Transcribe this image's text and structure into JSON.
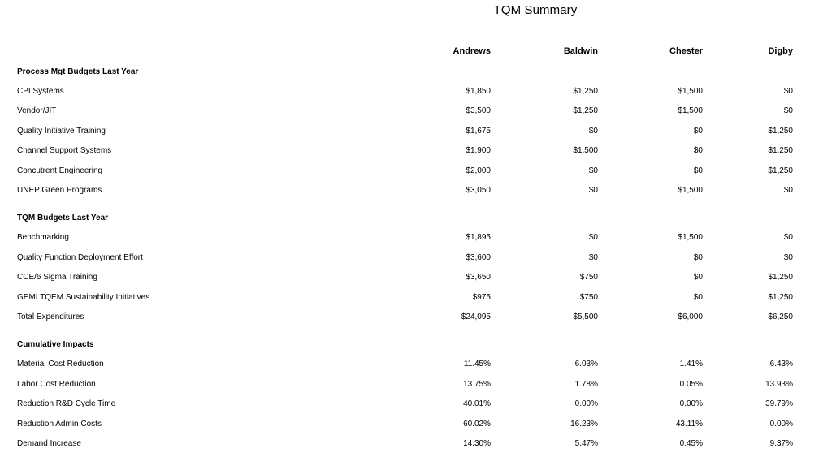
{
  "title": "TQM Summary",
  "columns": [
    "Andrews",
    "Baldwin",
    "Chester",
    "Digby"
  ],
  "sections": [
    {
      "heading": "Process Mgt Budgets Last Year",
      "rows": [
        {
          "label": "CPI Systems",
          "values": [
            "$1,850",
            "$1,250",
            "$1,500",
            "$0"
          ]
        },
        {
          "label": "Vendor/JIT",
          "values": [
            "$3,500",
            "$1,250",
            "$1,500",
            "$0"
          ]
        },
        {
          "label": "Quality Initiative Training",
          "values": [
            "$1,675",
            "$0",
            "$0",
            "$1,250"
          ]
        },
        {
          "label": "Channel Support Systems",
          "values": [
            "$1,900",
            "$1,500",
            "$0",
            "$1,250"
          ]
        },
        {
          "label": "Concutrent Engineering",
          "values": [
            "$2,000",
            "$0",
            "$0",
            "$1,250"
          ]
        },
        {
          "label": "UNEP Green Programs",
          "values": [
            "$3,050",
            "$0",
            "$1,500",
            "$0"
          ]
        }
      ]
    },
    {
      "heading": "TQM Budgets Last Year",
      "rows": [
        {
          "label": "Benchmarking",
          "values": [
            "$1,895",
            "$0",
            "$1,500",
            "$0"
          ]
        },
        {
          "label": "Quality Function Deployment Effort",
          "values": [
            "$3,600",
            "$0",
            "$0",
            "$0"
          ]
        },
        {
          "label": "CCE/6 Sigma Training",
          "values": [
            "$3,650",
            "$750",
            "$0",
            "$1,250"
          ]
        },
        {
          "label": "GEMI TQEM Sustainability Initiatives",
          "values": [
            "$975",
            "$750",
            "$0",
            "$1,250"
          ]
        },
        {
          "label": "Total Expenditures",
          "values": [
            "$24,095",
            "$5,500",
            "$6,000",
            "$6,250"
          ]
        }
      ]
    },
    {
      "heading": "Cumulative Impacts",
      "rows": [
        {
          "label": "Material Cost Reduction",
          "values": [
            "11.45%",
            "6.03%",
            "1.41%",
            "6.43%"
          ]
        },
        {
          "label": "Labor Cost Reduction",
          "values": [
            "13.75%",
            "1.78%",
            "0.05%",
            "13.93%"
          ]
        },
        {
          "label": "Reduction R&D Cycle Time",
          "values": [
            "40.01%",
            "0.00%",
            "0.00%",
            "39.79%"
          ]
        },
        {
          "label": "Reduction Admin Costs",
          "values": [
            "60.02%",
            "16.23%",
            "43.11%",
            "0.00%"
          ]
        },
        {
          "label": "Demand Increase",
          "values": [
            "14.30%",
            "5.47%",
            "0.45%",
            "9.37%"
          ]
        }
      ]
    }
  ]
}
